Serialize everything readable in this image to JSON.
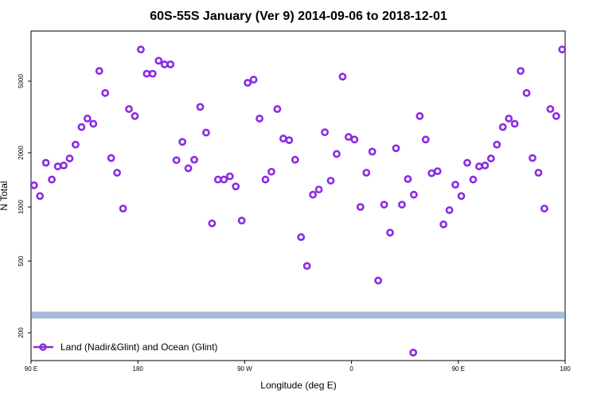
{
  "chart_data": {
    "type": "scatter",
    "title": "60S-55S January (Ver 9)   2014-09-06 to 2018-12-01",
    "xlabel": "Longitude (deg E)",
    "ylabel": "N Total",
    "xlim": [
      -90,
      180
    ],
    "ylim": [
      140,
      9500
    ],
    "y_scale": "log",
    "x_ticks": [
      {
        "value": -90,
        "label": "90 E"
      },
      {
        "value": -36,
        "label": "180"
      },
      {
        "value": 18,
        "label": "90 W"
      },
      {
        "value": 72,
        "label": "0"
      },
      {
        "value": 126,
        "label": "90 E"
      },
      {
        "value": 180,
        "label": "180"
      }
    ],
    "y_ticks": [
      200,
      500,
      1000,
      2000,
      5000
    ],
    "grid": false,
    "legend": {
      "position": "bottom-left",
      "label": "Land (Nadir&Glint) and Ocean (Glint)"
    },
    "band": {
      "y_low": 240,
      "y_high": 262,
      "color": "#a4bbdc"
    },
    "series": [
      {
        "name": "Land (Nadir&Glint) and Ocean (Glint)",
        "color": "#8a2be2",
        "x": [
          -88.5,
          -85.5,
          -82.5,
          -79.5,
          -76.5,
          -73.5,
          -70.5,
          -67.5,
          -64.5,
          -61.5,
          -58.5,
          -55.5,
          -52.5,
          -49.5,
          -46.5,
          -43.5,
          -40.5,
          -37.5,
          -34.5,
          -31.5,
          -28.5,
          -25.5,
          -22.5,
          -19.5,
          -16.5,
          -13.5,
          -10.5,
          -7.5,
          -4.5,
          -1.5,
          1.5,
          4.5,
          7.5,
          10.5,
          13.5,
          16.5,
          19.5,
          22.5,
          25.5,
          28.5,
          31.5,
          34.5,
          37.5,
          40.5,
          43.5,
          46.5,
          49.5,
          52.5,
          55.5,
          58.5,
          61.5,
          64.5,
          67.5,
          70.5,
          73.5,
          76.5,
          79.5,
          82.5,
          85.5,
          88.5,
          91.5,
          94.5,
          97.5,
          100.5,
          103.5,
          106.5,
          109.5,
          112.5,
          115.5,
          118.5,
          121.5,
          124.5,
          127.5,
          130.5,
          133.5,
          136.5,
          139.5,
          142.5,
          145.5,
          148.5,
          151.5,
          154.5,
          157.5,
          160.5,
          163.5,
          166.5,
          169.5,
          172.5,
          175.5,
          178.5
        ],
        "y": [
          1320,
          1150,
          1760,
          1420,
          1680,
          1700,
          1860,
          2220,
          2780,
          3100,
          2900,
          5700,
          4300,
          1870,
          1550,
          980,
          3500,
          3200,
          7500,
          5500,
          5500,
          6500,
          6200,
          6200,
          1820,
          2300,
          1640,
          1830,
          3600,
          2590,
          810,
          1420,
          1420,
          1480,
          1300,
          840,
          4900,
          5100,
          3100,
          1420,
          1570,
          3500,
          2400,
          2350,
          1830,
          680,
          470,
          1170,
          1250,
          2600,
          1400,
          1970,
          5300,
          2450,
          2370,
          1000,
          1550,
          2030,
          390,
          1030,
          720,
          2120,
          1030,
          1430,
          1170,
          3200,
          2370,
          1540,
          1580,
          800,
          960,
          1330,
          1150,
          1760,
          1420,
          1680,
          1700,
          1860,
          2220,
          2780,
          3100,
          2900,
          5700,
          4300,
          1870,
          1550,
          980,
          3500,
          3200,
          7500
        ]
      },
      {
        "name": "",
        "color": "#8a2be2",
        "x": [
          103.2
        ],
        "y": [
          155
        ]
      }
    ]
  }
}
